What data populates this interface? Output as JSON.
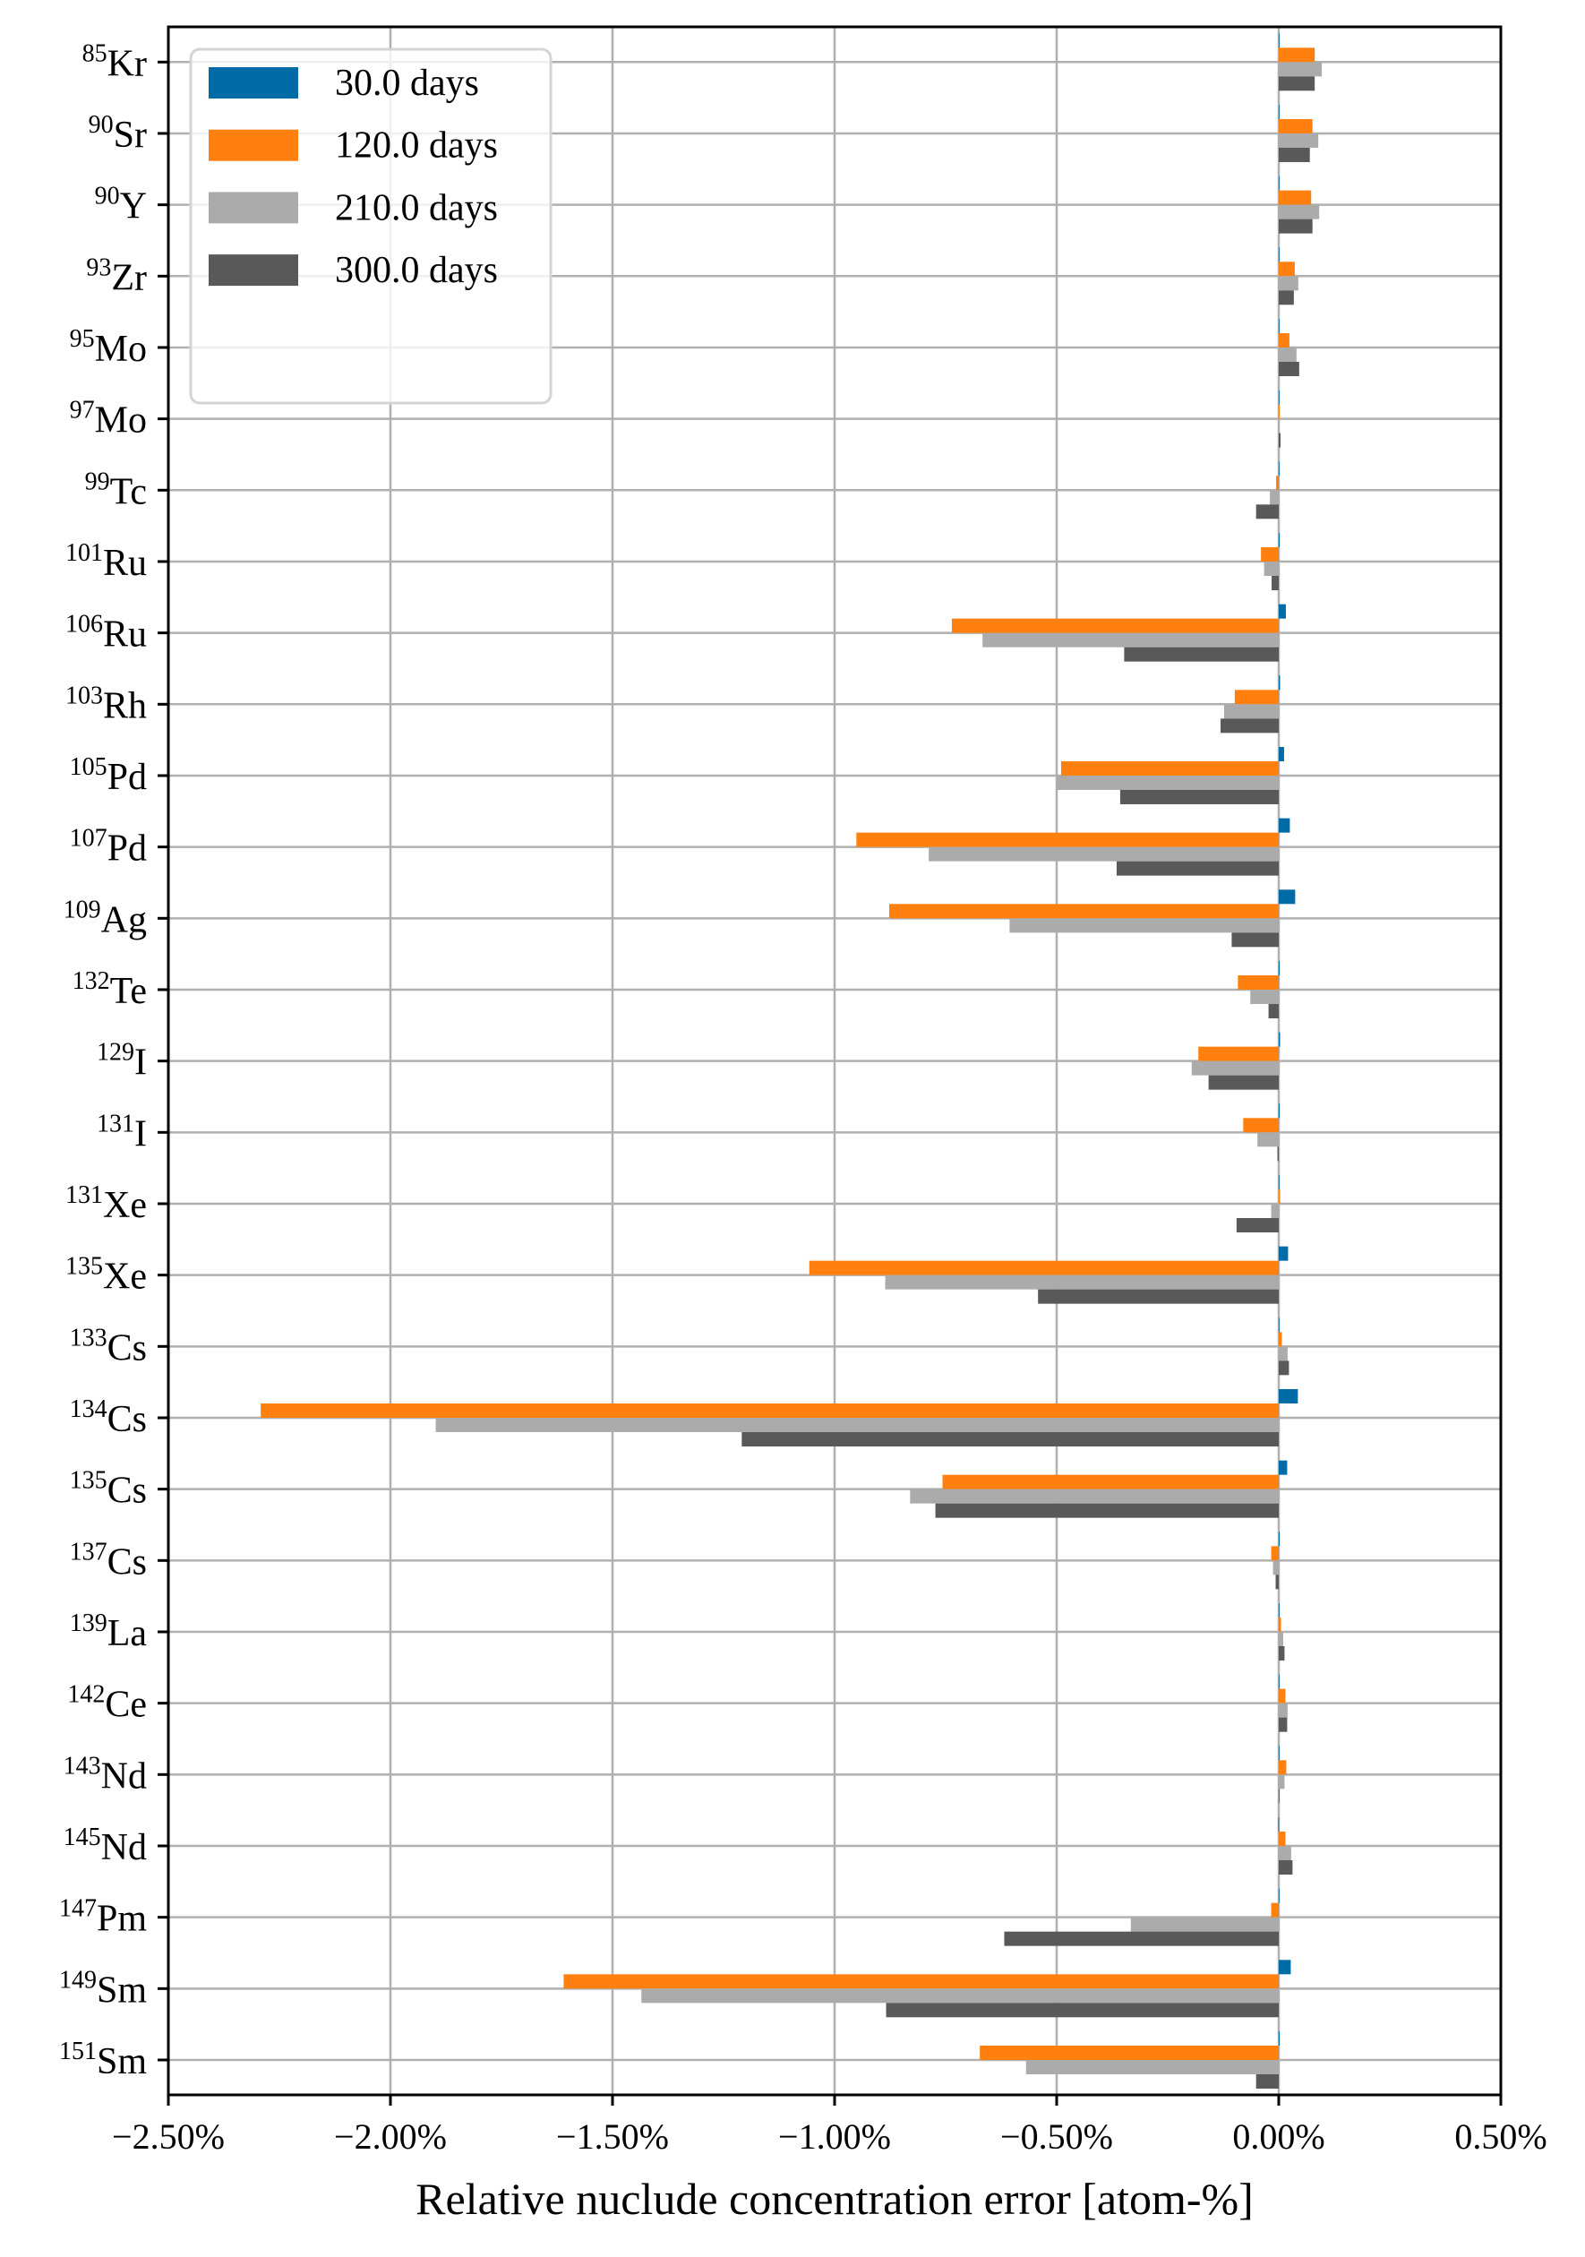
{
  "chart_data": {
    "type": "bar",
    "orientation": "horizontal",
    "title": "",
    "xlabel": "Relative nuclude concentration error [atom-%]",
    "ylabel": "",
    "xlim": [
      -2.5,
      0.5
    ],
    "x_ticks": [
      -2.5,
      -2.0,
      -1.5,
      -1.0,
      -0.5,
      0.0,
      0.5
    ],
    "x_tick_labels": [
      "−2.50%",
      "−2.00%",
      "−1.50%",
      "−1.00%",
      "−0.50%",
      "0.00%",
      "0.50%"
    ],
    "grid": true,
    "legend_position": "upper left",
    "categories": [
      {
        "mass": "85",
        "element": "Kr"
      },
      {
        "mass": "90",
        "element": "Sr"
      },
      {
        "mass": "90",
        "element": "Y"
      },
      {
        "mass": "93",
        "element": "Zr"
      },
      {
        "mass": "95",
        "element": "Mo"
      },
      {
        "mass": "97",
        "element": "Mo"
      },
      {
        "mass": "99",
        "element": "Tc"
      },
      {
        "mass": "101",
        "element": "Ru"
      },
      {
        "mass": "106",
        "element": "Ru"
      },
      {
        "mass": "103",
        "element": "Rh"
      },
      {
        "mass": "105",
        "element": "Pd"
      },
      {
        "mass": "107",
        "element": "Pd"
      },
      {
        "mass": "109",
        "element": "Ag"
      },
      {
        "mass": "132",
        "element": "Te"
      },
      {
        "mass": "129",
        "element": "I"
      },
      {
        "mass": "131",
        "element": "I"
      },
      {
        "mass": "131",
        "element": "Xe"
      },
      {
        "mass": "135",
        "element": "Xe"
      },
      {
        "mass": "133",
        "element": "Cs"
      },
      {
        "mass": "134",
        "element": "Cs"
      },
      {
        "mass": "135",
        "element": "Cs"
      },
      {
        "mass": "137",
        "element": "Cs"
      },
      {
        "mass": "139",
        "element": "La"
      },
      {
        "mass": "142",
        "element": "Ce"
      },
      {
        "mass": "143",
        "element": "Nd"
      },
      {
        "mass": "145",
        "element": "Nd"
      },
      {
        "mass": "147",
        "element": "Pm"
      },
      {
        "mass": "149",
        "element": "Sm"
      },
      {
        "mass": "151",
        "element": "Sm"
      }
    ],
    "series": [
      {
        "name": "30.0 days",
        "color": "#006ba4",
        "values": [
          0.001,
          0.001,
          0.001,
          0.001,
          0.001,
          0.001,
          0.001,
          0.002,
          0.016,
          0.003,
          0.012,
          0.025,
          0.037,
          0.002,
          0.003,
          0.002,
          0.001,
          0.021,
          0.001,
          0.043,
          0.019,
          0.002,
          0.001,
          0.001,
          0.001,
          -0.001,
          0.001,
          0.027,
          0.002
        ]
      },
      {
        "name": "120.0 days",
        "color": "#ff800e",
        "values": [
          0.081,
          0.076,
          0.073,
          0.036,
          0.024,
          0.002,
          -0.006,
          -0.04,
          -0.736,
          -0.099,
          -0.49,
          -0.951,
          -0.877,
          -0.092,
          -0.181,
          -0.08,
          0.003,
          -1.057,
          0.007,
          -2.292,
          -0.757,
          -0.017,
          0.005,
          0.015,
          0.017,
          0.015,
          -0.017,
          -1.61,
          -0.673
        ]
      },
      {
        "name": "210.0 days",
        "color": "#ababab",
        "values": [
          0.097,
          0.089,
          0.091,
          0.044,
          0.04,
          0.001,
          -0.02,
          -0.033,
          -0.667,
          -0.123,
          -0.501,
          -0.788,
          -0.606,
          -0.064,
          -0.196,
          -0.048,
          -0.017,
          -0.886,
          0.02,
          -1.898,
          -0.83,
          -0.013,
          0.01,
          0.02,
          0.013,
          0.028,
          -0.333,
          -1.435,
          -0.569
        ]
      },
      {
        "name": "300.0 days",
        "color": "#595959",
        "values": [
          0.081,
          0.07,
          0.076,
          0.034,
          0.046,
          0.004,
          -0.051,
          -0.016,
          -0.348,
          -0.131,
          -0.357,
          -0.365,
          -0.106,
          -0.023,
          -0.158,
          -0.003,
          -0.095,
          -0.542,
          0.023,
          -1.209,
          -0.773,
          -0.007,
          0.013,
          0.019,
          0.001,
          0.031,
          -0.618,
          -0.884,
          -0.051
        ]
      }
    ]
  },
  "legend": {
    "items": [
      {
        "label": "30.0 days",
        "color": "#006ba4"
      },
      {
        "label": "120.0 days",
        "color": "#ff800e"
      },
      {
        "label": "210.0 days",
        "color": "#ababab"
      },
      {
        "label": "300.0 days",
        "color": "#595959"
      }
    ]
  },
  "axes": {
    "xlabel": "Relative nuclude concentration error [atom-%]",
    "grid_color": "#b0b0b0",
    "frame_color": "#000000"
  }
}
